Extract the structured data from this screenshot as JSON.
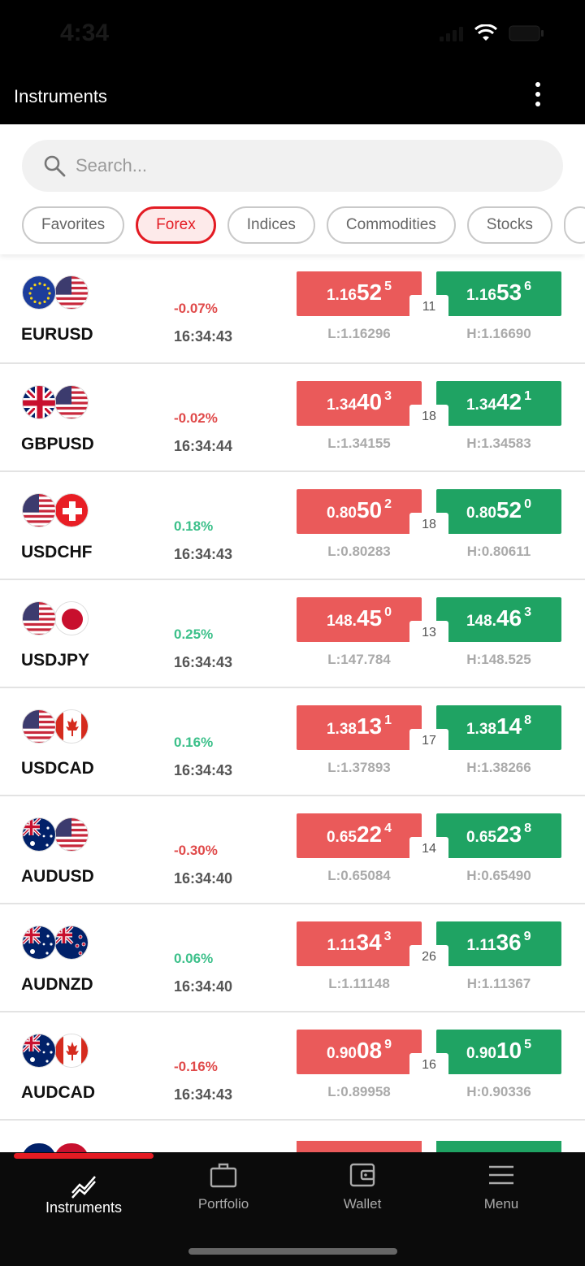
{
  "status_bar": {
    "time": "4:34"
  },
  "header": {
    "title": "Instruments",
    "menu_icon": "kebab-menu-icon"
  },
  "search": {
    "placeholder": "Search...",
    "value": "",
    "icon": "search-icon"
  },
  "chips": [
    {
      "label": "Favorites",
      "active": false
    },
    {
      "label": "Forex",
      "active": true
    },
    {
      "label": "Indices",
      "active": false
    },
    {
      "label": "Commodities",
      "active": false
    },
    {
      "label": "Stocks",
      "active": false
    }
  ],
  "instruments": [
    {
      "symbol": "EURUSD",
      "flags": [
        "eu",
        "us"
      ],
      "change": "-0.07%",
      "direction": "neg",
      "time": "16:34:43",
      "bid": {
        "small": "1.16",
        "big": "52",
        "sup": "5"
      },
      "ask": {
        "small": "1.16",
        "big": "53",
        "sup": "6"
      },
      "spread": "11",
      "low": "L:1.16296",
      "high": "H:1.16690"
    },
    {
      "symbol": "GBPUSD",
      "flags": [
        "gb",
        "us"
      ],
      "change": "-0.02%",
      "direction": "neg",
      "time": "16:34:44",
      "bid": {
        "small": "1.34",
        "big": "40",
        "sup": "3"
      },
      "ask": {
        "small": "1.34",
        "big": "42",
        "sup": "1"
      },
      "spread": "18",
      "low": "L:1.34155",
      "high": "H:1.34583"
    },
    {
      "symbol": "USDCHF",
      "flags": [
        "us",
        "ch"
      ],
      "change": "0.18%",
      "direction": "pos",
      "time": "16:34:43",
      "bid": {
        "small": "0.80",
        "big": "50",
        "sup": "2"
      },
      "ask": {
        "small": "0.80",
        "big": "52",
        "sup": "0"
      },
      "spread": "18",
      "low": "L:0.80283",
      "high": "H:0.80611"
    },
    {
      "symbol": "USDJPY",
      "flags": [
        "us",
        "jp"
      ],
      "change": "0.25%",
      "direction": "pos",
      "time": "16:34:43",
      "bid": {
        "small": "148.",
        "big": "45",
        "sup": "0"
      },
      "ask": {
        "small": "148.",
        "big": "46",
        "sup": "3"
      },
      "spread": "13",
      "low": "L:147.784",
      "high": "H:148.525"
    },
    {
      "symbol": "USDCAD",
      "flags": [
        "us",
        "ca"
      ],
      "change": "0.16%",
      "direction": "pos",
      "time": "16:34:43",
      "bid": {
        "small": "1.38",
        "big": "13",
        "sup": "1"
      },
      "ask": {
        "small": "1.38",
        "big": "14",
        "sup": "8"
      },
      "spread": "17",
      "low": "L:1.37893",
      "high": "H:1.38266"
    },
    {
      "symbol": "AUDUSD",
      "flags": [
        "au",
        "us"
      ],
      "change": "-0.30%",
      "direction": "neg",
      "time": "16:34:40",
      "bid": {
        "small": "0.65",
        "big": "22",
        "sup": "4"
      },
      "ask": {
        "small": "0.65",
        "big": "23",
        "sup": "8"
      },
      "spread": "14",
      "low": "L:0.65084",
      "high": "H:0.65490"
    },
    {
      "symbol": "AUDNZD",
      "flags": [
        "au",
        "nz"
      ],
      "change": "0.06%",
      "direction": "pos",
      "time": "16:34:40",
      "bid": {
        "small": "1.11",
        "big": "34",
        "sup": "3"
      },
      "ask": {
        "small": "1.11",
        "big": "36",
        "sup": "9"
      },
      "spread": "26",
      "low": "L:1.11148",
      "high": "H:1.11367"
    },
    {
      "symbol": "AUDCAD",
      "flags": [
        "au",
        "ca"
      ],
      "change": "-0.16%",
      "direction": "neg",
      "time": "16:34:43",
      "bid": {
        "small": "0.90",
        "big": "08",
        "sup": "9"
      },
      "ask": {
        "small": "0.90",
        "big": "10",
        "sup": "5"
      },
      "spread": "16",
      "low": "L:0.89958",
      "high": "H:0.90336"
    }
  ],
  "tabs": [
    {
      "label": "Instruments",
      "icon": "chart-trend-icon",
      "active": true
    },
    {
      "label": "Portfolio",
      "icon": "briefcase-icon",
      "active": false
    },
    {
      "label": "Wallet",
      "icon": "wallet-icon",
      "active": false
    },
    {
      "label": "Menu",
      "icon": "hamburger-menu-icon",
      "active": false
    }
  ],
  "colors": {
    "accent": "#e31b23",
    "bid": "#ea5a5a",
    "ask": "#1fa363",
    "positive": "#3cc08a",
    "negative": "#e04a4a"
  }
}
